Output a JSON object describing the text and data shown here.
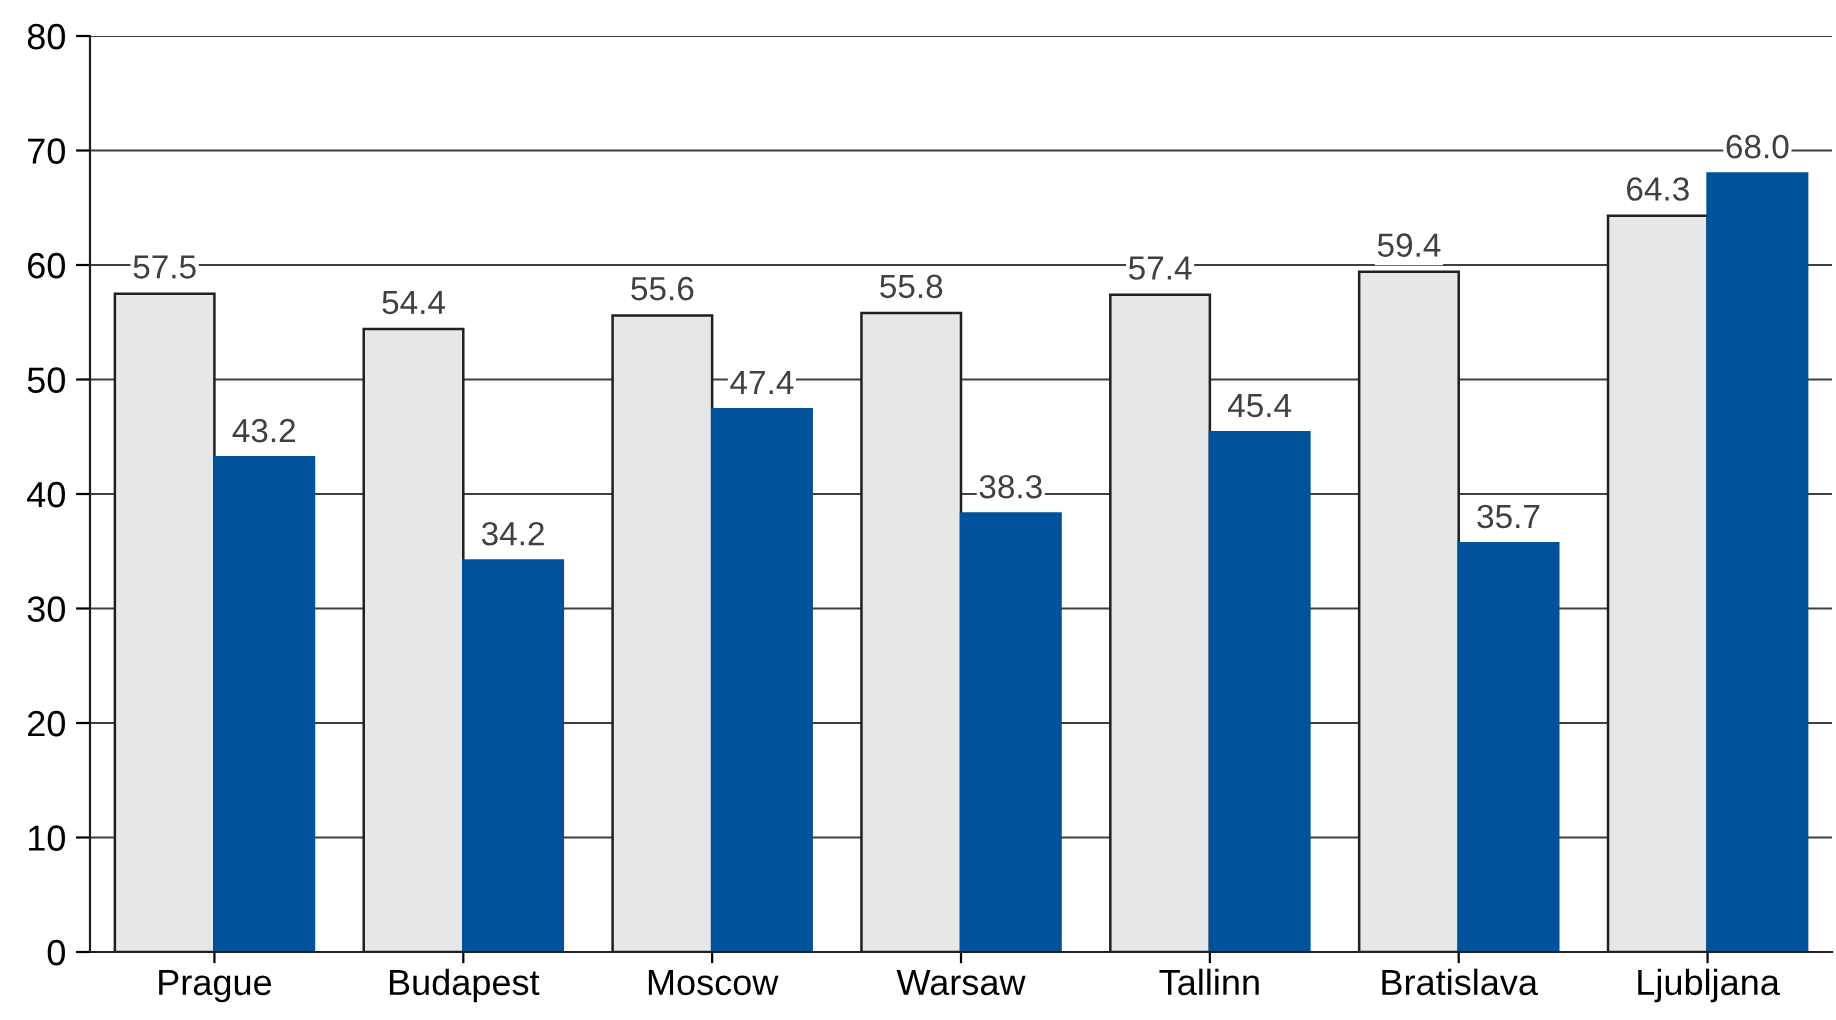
{
  "chart_data": {
    "type": "bar",
    "categories": [
      "Prague",
      "Budapest",
      "Moscow",
      "Warsaw",
      "Tallinn",
      "Bratislava",
      "Ljubljana"
    ],
    "series": [
      {
        "color": "#e6e7e8",
        "values": [
          57.5,
          54.4,
          55.6,
          55.8,
          57.4,
          59.4,
          64.3
        ],
        "value_labels": [
          "57.5",
          "54.4",
          "55.6",
          "55.8",
          "57.4",
          "59.4",
          "64.3"
        ]
      },
      {
        "color": "#00529b",
        "values": [
          43.2,
          34.2,
          47.4,
          38.3,
          45.4,
          35.7,
          68.0
        ],
        "value_labels": [
          "43.2",
          "34.2",
          "47.4",
          "38.3",
          "45.4",
          "35.7",
          "68.0"
        ]
      }
    ],
    "ylim": [
      0,
      80
    ],
    "yticks": [
      0,
      10,
      20,
      30,
      40,
      50,
      60,
      70,
      80
    ],
    "grid": "y"
  }
}
